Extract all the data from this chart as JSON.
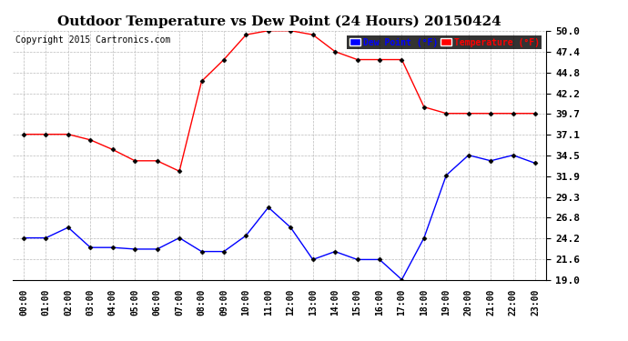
{
  "title": "Outdoor Temperature vs Dew Point (24 Hours) 20150424",
  "copyright": "Copyright 2015 Cartronics.com",
  "hours": [
    "00:00",
    "01:00",
    "02:00",
    "03:00",
    "04:00",
    "05:00",
    "06:00",
    "07:00",
    "08:00",
    "09:00",
    "10:00",
    "11:00",
    "12:00",
    "13:00",
    "14:00",
    "15:00",
    "16:00",
    "17:00",
    "18:00",
    "19:00",
    "20:00",
    "21:00",
    "22:00",
    "23:00"
  ],
  "temperature": [
    37.1,
    37.1,
    37.1,
    36.4,
    35.2,
    33.8,
    33.8,
    32.5,
    43.7,
    46.4,
    49.5,
    50.0,
    50.0,
    49.5,
    47.4,
    46.4,
    46.4,
    46.4,
    40.5,
    39.7,
    39.7,
    39.7,
    39.7,
    39.7
  ],
  "dew_point": [
    24.2,
    24.2,
    25.5,
    23.0,
    23.0,
    22.8,
    22.8,
    24.2,
    22.5,
    22.5,
    24.5,
    28.0,
    25.5,
    21.5,
    22.5,
    21.5,
    21.5,
    19.0,
    24.2,
    32.0,
    34.5,
    33.8,
    34.5,
    33.5
  ],
  "temp_color": "#FF0000",
  "dew_color": "#0000FF",
  "bg_color": "#FFFFFF",
  "plot_bg": "#FFFFFF",
  "grid_color": "#BBBBBB",
  "ylim": [
    19.0,
    50.0
  ],
  "yticks": [
    19.0,
    21.6,
    24.2,
    26.8,
    29.3,
    31.9,
    34.5,
    37.1,
    39.7,
    42.2,
    44.8,
    47.4,
    50.0
  ],
  "legend_dew_label": "Dew Point (°F)",
  "legend_temp_label": "Temperature (°F)",
  "title_fontsize": 11,
  "tick_fontsize": 8,
  "copyright_fontsize": 7
}
